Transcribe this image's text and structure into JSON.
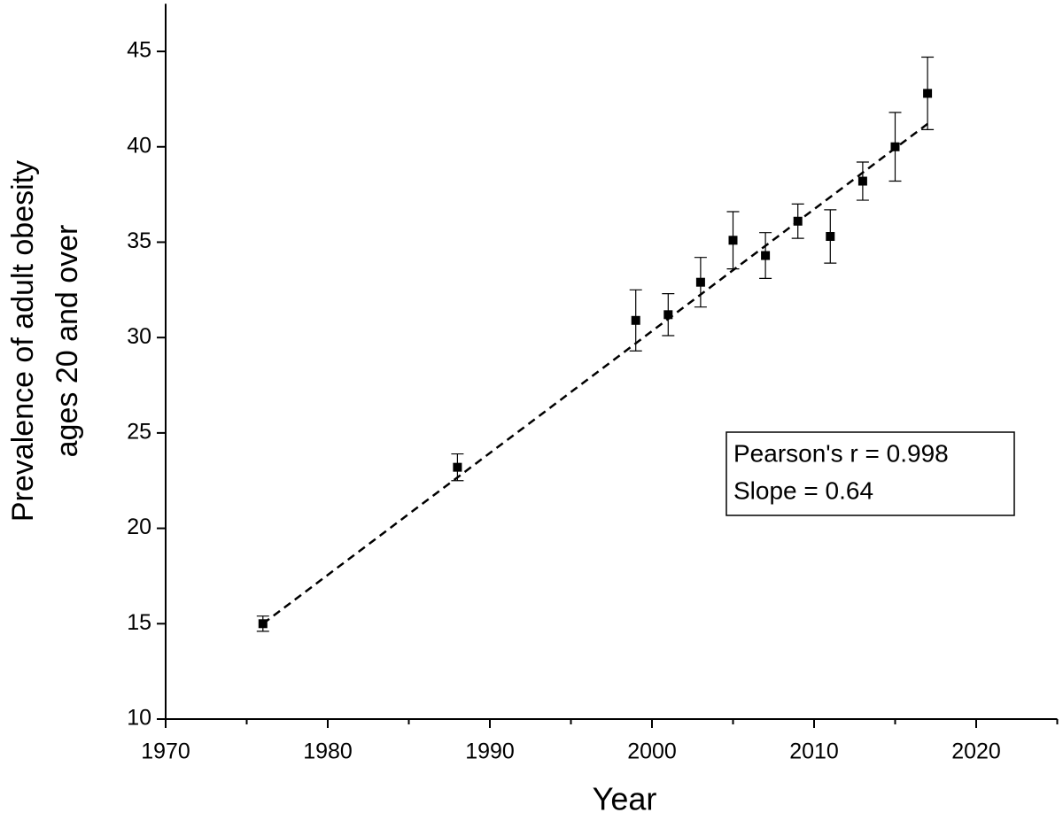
{
  "chart_data": {
    "type": "scatter",
    "xlabel": "Year",
    "ylabel": [
      "Prevalence of adult obesity",
      "ages 20 and over"
    ],
    "xlim": [
      1970,
      2025
    ],
    "ylim": [
      10,
      47.5
    ],
    "xticks": [
      1970,
      1980,
      1990,
      2000,
      2010,
      2020
    ],
    "xminorticks": [
      1975,
      1985,
      1995,
      2005,
      2015,
      2025
    ],
    "yticks": [
      10,
      15,
      20,
      25,
      30,
      35,
      40,
      45
    ],
    "series": [
      {
        "color": "#000000",
        "x": [
          1976,
          1988,
          1999,
          2001,
          2003,
          2005,
          2007,
          2009,
          2011,
          2013,
          2015,
          2017
        ],
        "values": [
          15.0,
          23.2,
          30.9,
          31.2,
          32.9,
          35.1,
          34.3,
          36.1,
          35.3,
          38.2,
          40.0,
          42.8
        ],
        "errors": [
          0.4,
          0.7,
          1.6,
          1.1,
          1.3,
          1.5,
          1.2,
          0.9,
          1.4,
          1.0,
          1.8,
          1.9
        ]
      }
    ],
    "fit": {
      "x": [
        1976,
        2017
      ],
      "values": [
        15.0,
        41.2
      ]
    },
    "annotation": [
      "Pearson's r = 0.998",
      "Slope = 0.64"
    ]
  }
}
